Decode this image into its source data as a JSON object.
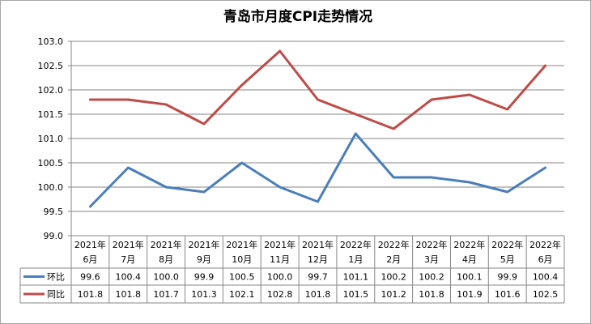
{
  "chart_data": {
    "type": "line",
    "title": "青岛市月度CPI走势情况",
    "categories": [
      [
        "2021年",
        "6月"
      ],
      [
        "2021年",
        "7月"
      ],
      [
        "2021年",
        "8月"
      ],
      [
        "2021年",
        "9月"
      ],
      [
        "2021年",
        "10月"
      ],
      [
        "2021年",
        "11月"
      ],
      [
        "2021年",
        "12月"
      ],
      [
        "2022年",
        "1月"
      ],
      [
        "2022年",
        "2月"
      ],
      [
        "2022年",
        "3月"
      ],
      [
        "2022年",
        "4月"
      ],
      [
        "2022年",
        "5月"
      ],
      [
        "2022年",
        "6月"
      ]
    ],
    "ylim": [
      99.0,
      103.0
    ],
    "yticks": [
      "99.0",
      "99.5",
      "100.0",
      "100.5",
      "101.0",
      "101.5",
      "102.0",
      "102.5",
      "103.0"
    ],
    "grid": true,
    "legend": "data-table",
    "series": [
      {
        "name": "环比",
        "color": "#4a7ebb",
        "values": [
          99.6,
          100.4,
          100.0,
          99.9,
          100.5,
          100.0,
          99.7,
          101.1,
          100.2,
          100.2,
          100.1,
          99.9,
          100.4
        ],
        "labels": [
          "99.6",
          "100.4",
          "100.0",
          "99.9",
          "100.5",
          "100.0",
          "99.7",
          "101.1",
          "100.2",
          "100.2",
          "100.1",
          "99.9",
          "100.4"
        ]
      },
      {
        "name": "同比",
        "color": "#be4b48",
        "values": [
          101.8,
          101.8,
          101.7,
          101.3,
          102.1,
          102.8,
          101.8,
          101.5,
          101.2,
          101.8,
          101.9,
          101.6,
          102.5
        ],
        "labels": [
          "101.8",
          "101.8",
          "101.7",
          "101.3",
          "102.1",
          "102.8",
          "101.8",
          "101.5",
          "101.2",
          "101.8",
          "101.9",
          "101.6",
          "102.5"
        ]
      }
    ]
  }
}
